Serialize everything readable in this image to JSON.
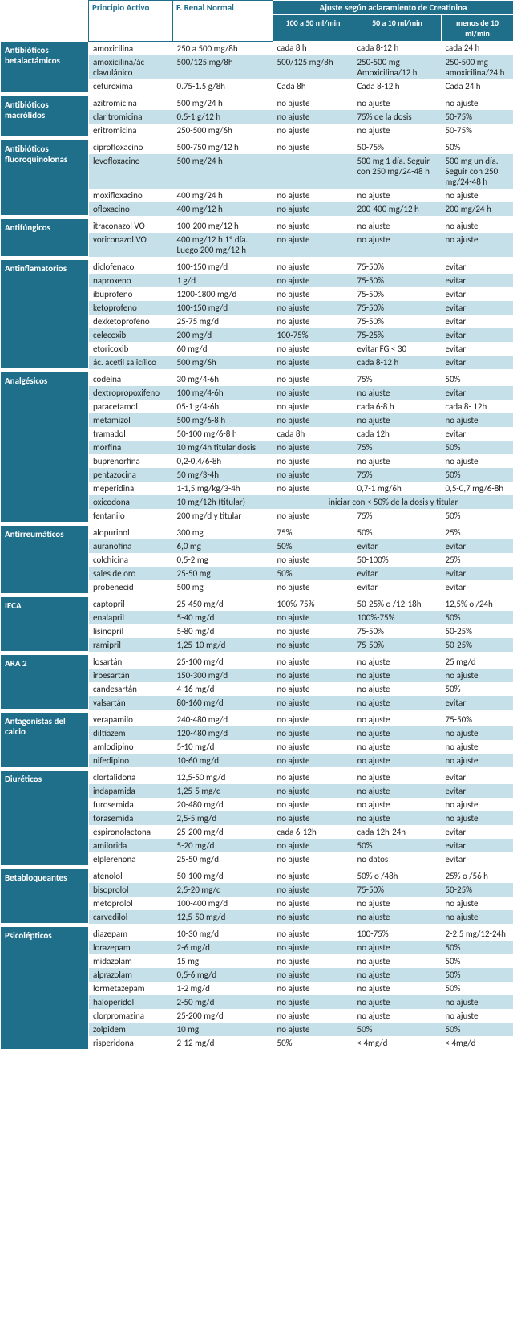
{
  "headers": {
    "col1": "Principio Activo",
    "col2": "F. Renal Normal",
    "group": "Ajuste según aclaramiento de Creatinina",
    "sub1": "100 a 50 ml/min",
    "sub2": "50 a 10 ml/min",
    "sub3": "menos de 10 ml/min"
  },
  "colors": {
    "header_bg": "#1f6f8b",
    "header_fg": "#ffffff",
    "row_alt": "#c5e0e8",
    "text": "#222222"
  },
  "groups": [
    {
      "name": "Antibióticos betalactámicos",
      "rows": [
        [
          "amoxicilina",
          "250 a 500 mg/8h",
          "cada 8 h",
          "cada 8-12 h",
          "cada 24 h"
        ],
        [
          "amoxicilina/ác clavulánico",
          "500/125 mg/8h",
          "500/125 mg/8h",
          "250-500 mg Amoxicilina/12 h",
          "250-500 mg amoxicilina/24 h"
        ],
        [
          "cefuroxima",
          "0.75-1.5 g/8h",
          "Cada 8h",
          "Cada 8-12 h",
          "Cada 24 h"
        ]
      ]
    },
    {
      "name": "Antibióticos macrólidos",
      "rows": [
        [
          "azitromicina",
          "500 mg/24 h",
          "no ajuste",
          "no ajuste",
          "no ajuste"
        ],
        [
          "claritromicina",
          "0.5-1 g/12 h",
          "no ajuste",
          "75% de la dosis",
          "50-75%"
        ],
        [
          "eritromicina",
          "250-500 mg/6h",
          "no ajuste",
          "no ajuste",
          "50-75%"
        ]
      ]
    },
    {
      "name": "Antibióticos fluoroquinolonas",
      "rows": [
        [
          "ciprofloxacino",
          "500-750 mg/12 h",
          "no ajuste",
          "50-75%",
          "50%"
        ],
        [
          "levofloxacino",
          "500 mg/24 h",
          "",
          "500 mg 1 día. Seguir con 250 mg/24-48 h",
          "500 mg un día. Seguir con 250 mg/24-48 h"
        ],
        [
          "moxifloxacino",
          "400 mg/24 h",
          "no ajuste",
          "no ajuste",
          "no ajuste"
        ],
        [
          "ofloxacino",
          "400 mg/12 h",
          "no ajuste",
          "200-400 mg/12 h",
          "200 mg/24 h"
        ]
      ]
    },
    {
      "name": "Antifúngicos",
      "rows": [
        [
          "itraconazol VO",
          "100-200 mg/12 h",
          "no ajuste",
          "no ajuste",
          "no ajuste"
        ],
        [
          "voriconazol VO",
          "400 mg/12 h 1º día. Luego 200 mg/12 h",
          "no ajuste",
          "no ajuste",
          "no ajuste"
        ]
      ]
    },
    {
      "name": "Antinflamatorios",
      "rows": [
        [
          "diclofenaco",
          "100-150 mg/d",
          "no ajuste",
          "75-50%",
          "evitar"
        ],
        [
          "naproxeno",
          "1 g/d",
          "no ajuste",
          "75-50%",
          "evitar"
        ],
        [
          "ibuprofeno",
          "1200-1800 mg/d",
          "no ajuste",
          "75-50%",
          "evitar"
        ],
        [
          "ketoprofeno",
          "100-150 mg/d",
          "no ajuste",
          "75-50%",
          "evitar"
        ],
        [
          "dexketoprofeno",
          "25-75 mg/d",
          "no ajuste",
          "75-50%",
          "evitar"
        ],
        [
          "celecoxib",
          "200 mg/d",
          "100-75%",
          "75-25%",
          "evitar"
        ],
        [
          "etoricoxib",
          "60 mg/d",
          "no ajuste",
          "evitar FG < 30",
          "evitar"
        ],
        [
          "ác. acetil salicílico",
          "500 mg/6h",
          "no ajuste",
          "cada 8-12 h",
          "evitar"
        ]
      ]
    },
    {
      "name": "Analgésicos",
      "rows": [
        [
          "codeína",
          "30 mg/4-6h",
          "no ajuste",
          "75%",
          "50%"
        ],
        [
          "dextropropoxifeno",
          "100 mg/4-6h",
          "no ajuste",
          "no ajuste",
          "evitar"
        ],
        [
          "paracetamol",
          "05-1 g/4-6h",
          "no ajuste",
          "cada 6-8 h",
          "cada 8- 12h"
        ],
        [
          "metamizol",
          "500 mg/6-8 h",
          "no ajuste",
          "no ajuste",
          "no ajuste"
        ],
        [
          "tramadol",
          "50-100 mg/6-8 h",
          "cada 8h",
          "cada 12h",
          "evitar"
        ],
        [
          "morfina",
          "10 mg/4h titular dosis",
          "no ajuste",
          "75%",
          "50%"
        ],
        [
          "buprenorfina",
          "0,2-0,4/6-8h",
          "no ajuste",
          "no ajuste",
          "no ajuste"
        ],
        [
          "pentazocina",
          "50 mg/3-4h",
          "no ajuste",
          "75%",
          "50%"
        ],
        [
          "meperidina",
          "1-1,5 mg/kg/3-4h",
          "no ajuste",
          "0,7-1 mg/6h",
          "0,5-0,7 mg/6-8h"
        ],
        [
          "oxicodona",
          "10 mg/12h (titular)",
          "__SPAN__iniciar con < 50% de la dosis y titular",
          "",
          ""
        ],
        [
          "fentanilo",
          "200 mg/d y titular",
          "no ajuste",
          "75%",
          "50%"
        ]
      ]
    },
    {
      "name": "Antirreumáticos",
      "rows": [
        [
          "alopurinol",
          "300 mg",
          "75%",
          "50%",
          "25%"
        ],
        [
          "auranofina",
          "6,0 mg",
          "50%",
          "evitar",
          "evitar"
        ],
        [
          "colchicina",
          "0,5-2 mg",
          "no ajuste",
          "50-100%",
          "25%"
        ],
        [
          "sales de oro",
          "25-50 mg",
          "50%",
          "evitar",
          "evitar"
        ],
        [
          "probenecid",
          "500 mg",
          "no ajuste",
          "evitar",
          "evitar"
        ]
      ]
    },
    {
      "name": "IECA",
      "rows": [
        [
          "captopril",
          "25-450 mg/d",
          "100%-75%",
          "50-25% o /12-18h",
          "12,5% o /24h"
        ],
        [
          "enalapril",
          "5-40 mg/d",
          "no ajuste",
          "100%-75%",
          "50%"
        ],
        [
          "lisinopril",
          "5-80 mg/d",
          "no ajuste",
          "75-50%",
          "50-25%"
        ],
        [
          "ramipril",
          "1,25-10 mg/d",
          "no ajuste",
          "75-50%",
          "50-25%"
        ]
      ]
    },
    {
      "name": "ARA 2",
      "rows": [
        [
          "losartán",
          "25-100 mg/d",
          "no ajuste",
          "no ajuste",
          "25 mg/d"
        ],
        [
          "irbesartán",
          "150-300 mg/d",
          "no ajuste",
          "no ajuste",
          "no ajuste"
        ],
        [
          "candesartán",
          "4-16 mg/d",
          "no ajuste",
          "no ajuste",
          "50%"
        ],
        [
          "valsartán",
          "80-160 mg/d",
          "no ajuste",
          "no ajuste",
          "evitar"
        ]
      ]
    },
    {
      "name": "Antagonistas del calcio",
      "rows": [
        [
          "verapamilo",
          "240-480 mg/d",
          "no ajuste",
          "no ajuste",
          "75-50%"
        ],
        [
          "diltiazem",
          "120-480 mg/d",
          "no ajuste",
          "no ajuste",
          "no ajuste"
        ],
        [
          "amlodipino",
          "5-10 mg/d",
          "no ajuste",
          "no ajuste",
          "no ajuste"
        ],
        [
          "nifedipino",
          "10-60 mg/d",
          "no ajuste",
          "no ajuste",
          "no ajuste"
        ]
      ]
    },
    {
      "name": "Diuréticos",
      "rows": [
        [
          "clortalidona",
          "12,5-50 mg/d",
          "no ajuste",
          "no ajuste",
          "evitar"
        ],
        [
          "indapamida",
          "1,25-5 mg/d",
          "no ajuste",
          "no ajuste",
          "evitar"
        ],
        [
          "furosemida",
          "20-480 mg/d",
          "no ajuste",
          "no ajuste",
          "no ajuste"
        ],
        [
          "torasemida",
          "2,5-5 mg/d",
          "no ajuste",
          "no ajuste",
          "no ajuste"
        ],
        [
          "espironolactona",
          "25-200 mg/d",
          "cada 6-12h",
          "cada 12h-24h",
          "evitar"
        ],
        [
          "amilorida",
          "5-20 mg/d",
          "no ajuste",
          "50%",
          "evitar"
        ],
        [
          "elplerenona",
          "25-50 mg/d",
          "no ajuste",
          "no datos",
          "evitar"
        ]
      ]
    },
    {
      "name": "Betabloqueantes",
      "rows": [
        [
          "atenolol",
          "50-100 mg/d",
          "no ajuste",
          "50% o /48h",
          "25% o /56 h"
        ],
        [
          "bisoprolol",
          "2,5-20 mg/d",
          "no ajuste",
          "75-50%",
          "50-25%"
        ],
        [
          "metoprolol",
          "100-400 mg/d",
          "no ajuste",
          "no ajuste",
          "no ajuste"
        ],
        [
          "carvedilol",
          "12,5-50 mg/d",
          "no ajuste",
          "no ajuste",
          "no ajuste"
        ]
      ]
    },
    {
      "name": "Psicolépticos",
      "rows": [
        [
          "diazepam",
          "10-30 mg/d",
          "no ajuste",
          "100-75%",
          "2-2,5 mg/12-24h"
        ],
        [
          "lorazepam",
          "2-6 mg/d",
          "no ajuste",
          "no ajuste",
          "50%"
        ],
        [
          "midazolam",
          "15 mg",
          "no ajuste",
          "no ajuste",
          "50%"
        ],
        [
          "alprazolam",
          "0,5-6 mg/d",
          "no ajuste",
          "no ajuste",
          "50%"
        ],
        [
          "lormetazepam",
          "1-2 mg/d",
          "no ajuste",
          "no ajuste",
          "50%"
        ],
        [
          "haloperidol",
          "2-50 mg/d",
          "no ajuste",
          "no ajuste",
          "no ajuste"
        ],
        [
          "clorpromazina",
          "25-200 mg/d",
          "no ajuste",
          "no ajuste",
          "no ajuste"
        ],
        [
          "zolpidem",
          "10 mg",
          "no ajuste",
          "50%",
          "50%"
        ],
        [
          "risperidona",
          "2-12 mg/d",
          "50%",
          "< 4mg/d",
          "< 4mg/d"
        ]
      ]
    }
  ]
}
